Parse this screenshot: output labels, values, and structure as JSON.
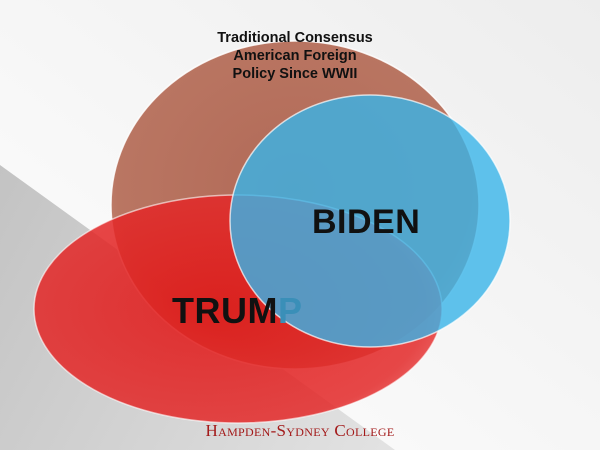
{
  "colors": {
    "background_dark": "#bdbdbd",
    "background_light": "#f4f4f4",
    "consensus_circle": "#b36a57",
    "biden_circle": "#3db4e6",
    "trump_ellipse": "#e01b1b",
    "college_name": "#a31a1a"
  },
  "diagram": {
    "consensus": {
      "lines": [
        "Traditional Consensus",
        "American Foreign",
        "Policy Since WWII"
      ]
    },
    "biden": {
      "label": "BIDEN"
    },
    "trump": {
      "label_main": "TRUM",
      "label_tail": "P"
    }
  },
  "footer": {
    "college_name": "Hampden-Sydney College"
  }
}
